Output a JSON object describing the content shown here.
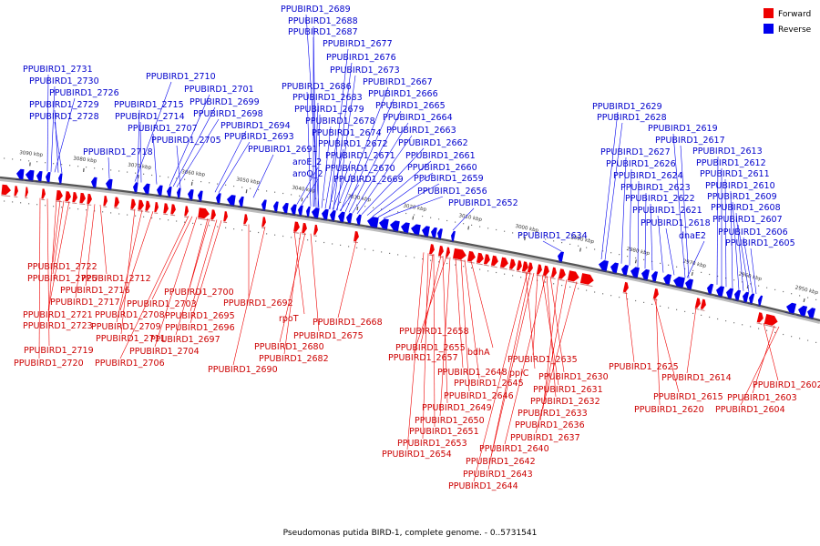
{
  "caption": "Pseudomonas putida BIRD-1, complete genome. - 0..5731541",
  "legend": [
    {
      "label": "Forward",
      "color": "#ee0000"
    },
    {
      "label": "Reverse",
      "color": "#0000ee"
    }
  ],
  "colors": {
    "forward": "#ee0000",
    "reverse": "#0000ee",
    "backbone": "#555555"
  },
  "ticks": [
    "3090 kbp",
    "3080 kbp",
    "3070 kbp",
    "3060 kbp",
    "3050 kbp",
    "3040 kbp",
    "3030 kbp",
    "3020 kbp",
    "3010 kbp",
    "3000 kbp",
    "2990 kbp",
    "2980 kbp",
    "2970 kbp",
    "2960 kbp",
    "2950 kbp"
  ],
  "reverse_labels": [
    "PPUBIRD1_2689",
    "PPUBIRD1_2688",
    "PPUBIRD1_2687",
    "PPUBIRD1_2677",
    "PPUBIRD1_2676",
    "PPUBIRD1_2673",
    "PPUBIRD1_2667",
    "PPUBIRD1_2686",
    "PPUBIRD1_2666",
    "PPUBIRD1_2683",
    "PPUBIRD1_2665",
    "PPUBIRD1_2679",
    "PPUBIRD1_2664",
    "PPUBIRD1_2678",
    "PPUBIRD1_2663",
    "PPUBIRD1_2674",
    "PPUBIRD1_2662",
    "PPUBIRD1_2672",
    "PPUBIRD1_2661",
    "PPUBIRD1_2671",
    "PPUBIRD1_2660",
    "PPUBIRD1_2670",
    "PPUBIRD1_2659",
    "PPUBIRD1_2669",
    "PPUBIRD1_2656",
    "PPUBIRD1_2652",
    "PPUBIRD1_2731",
    "PPUBIRD1_2730",
    "PPUBIRD1_2726",
    "PPUBIRD1_2729",
    "PPUBIRD1_2728",
    "PPUBIRD1_2710",
    "PPUBIRD1_2701",
    "PPUBIRD1_2715",
    "PPUBIRD1_2699",
    "PPUBIRD1_2714",
    "PPUBIRD1_2698",
    "PPUBIRD1_2694",
    "PPUBIRD1_2707",
    "PPUBIRD1_2693",
    "PPUBIRD1_2705",
    "PPUBIRD1_2718",
    "PPUBIRD1_2691",
    "aroE_2",
    "aroQ_2",
    "PPUBIRD1_2634",
    "PPUBIRD1_2629",
    "PPUBIRD1_2628",
    "PPUBIRD1_2619",
    "PPUBIRD1_2617",
    "PPUBIRD1_2627",
    "PPUBIRD1_2613",
    "PPUBIRD1_2626",
    "PPUBIRD1_2612",
    "PPUBIRD1_2624",
    "PPUBIRD1_2611",
    "PPUBIRD1_2623",
    "PPUBIRD1_2610",
    "PPUBIRD1_2622",
    "PPUBIRD1_2609",
    "PPUBIRD1_2621",
    "PPUBIRD1_2608",
    "PPUBIRD1_2618",
    "PPUBIRD1_2607",
    "PPUBIRD1_2606",
    "dnaE2",
    "PPUBIRD1_2605"
  ],
  "forward_labels": [
    "PPUBIRD1_2722",
    "PPUBIRD1_2725",
    "PPUBIRD1_2712",
    "PPUBIRD1_2716",
    "PPUBIRD1_2717",
    "PPUBIRD1_2700",
    "PPUBIRD1_2703",
    "PPUBIRD1_2692",
    "PPUBIRD1_2721",
    "PPUBIRD1_2708",
    "PPUBIRD1_2695",
    "PPUBIRD1_2723",
    "PPUBIRD1_2709",
    "PPUBIRD1_2696",
    "PPUBIRD1_2711",
    "PPUBIRD1_2697",
    "PPUBIRD1_2719",
    "PPUBIRD1_2704",
    "PPUBIRD1_2720",
    "PPUBIRD1_2706",
    "rpoT",
    "PPUBIRD1_2675",
    "PPUBIRD1_2680",
    "PPUBIRD1_2682",
    "PPUBIRD1_2690",
    "PPUBIRD1_2668",
    "PPUBIRD1_2658",
    "PPUBIRD1_2655",
    "PPUBIRD1_2657",
    "bdhA",
    "PPUBIRD1_2635",
    "PPUBIRD1_2648",
    "ppiC",
    "PPUBIRD1_2630",
    "PPUBIRD1_2645",
    "PPUBIRD1_2631",
    "PPUBIRD1_2646",
    "PPUBIRD1_2632",
    "PPUBIRD1_2649",
    "PPUBIRD1_2633",
    "PPUBIRD1_2650",
    "PPUBIRD1_2636",
    "PPUBIRD1_2651",
    "PPUBIRD1_2637",
    "PPUBIRD1_2653",
    "PPUBIRD1_2640",
    "PPUBIRD1_2654",
    "PPUBIRD1_2642",
    "PPUBIRD1_2643",
    "PPUBIRD1_2644",
    "PPUBIRD1_2625",
    "PPUBIRD1_2614",
    "PPUBIRD1_2615",
    "PPUBIRD1_2620",
    "PPUBIRD1_2602",
    "PPUBIRD1_2603",
    "PPUBIRD1_2604"
  ]
}
